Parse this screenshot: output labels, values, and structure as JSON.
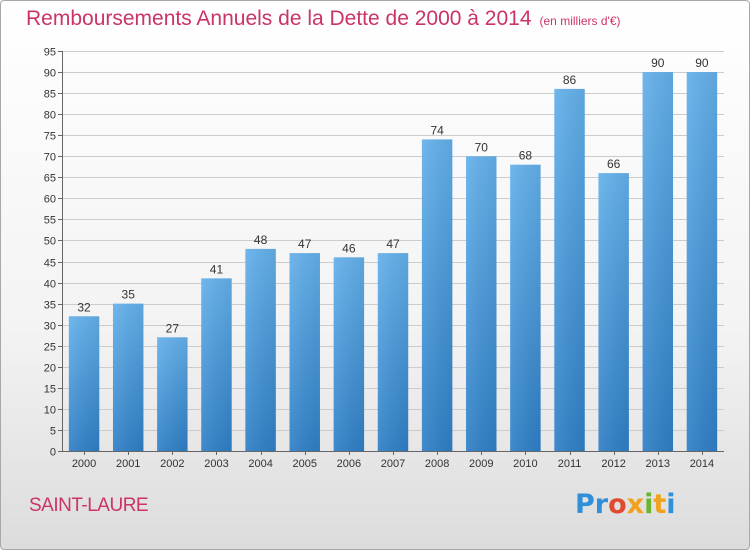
{
  "header": {
    "title": "Remboursements Annuels de la Dette de 2000 à 2014",
    "unit": "(en milliers d'€)"
  },
  "footer": {
    "place": "SAINT-LAURE",
    "logo": [
      "Pr",
      "o",
      "x",
      "i",
      "t",
      "i"
    ]
  },
  "chart_data": {
    "type": "bar",
    "title": "Remboursements Annuels de la Dette de 2000 à 2014",
    "subtitle": "(en milliers d'€)",
    "xlabel": "",
    "ylabel": "",
    "categories": [
      "2000",
      "2001",
      "2002",
      "2003",
      "2004",
      "2005",
      "2006",
      "2007",
      "2008",
      "2009",
      "2010",
      "2011",
      "2012",
      "2013",
      "2014"
    ],
    "values": [
      32,
      35,
      27,
      41,
      48,
      47,
      46,
      47,
      74,
      70,
      68,
      86,
      66,
      90,
      90
    ],
    "ylim": [
      0,
      95
    ],
    "yticks": [
      0,
      5,
      10,
      15,
      20,
      25,
      30,
      35,
      40,
      45,
      50,
      55,
      60,
      65,
      70,
      75,
      80,
      85,
      90,
      95
    ],
    "grid": true,
    "legend": "none",
    "colors": {
      "bar_top": "#63b0ea",
      "bar_bottom": "#2f7fc6",
      "grid": "#cccccc",
      "accent": "#cc3366"
    }
  }
}
